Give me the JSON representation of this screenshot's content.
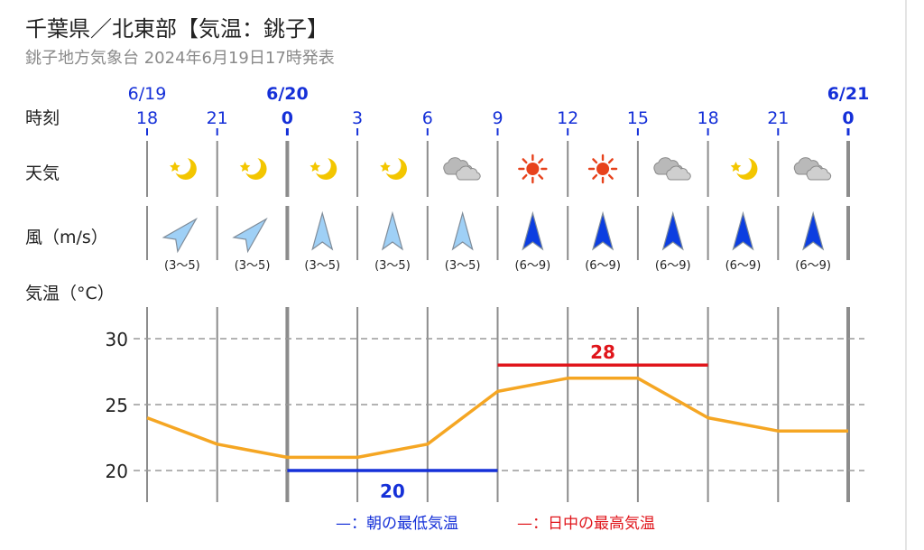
{
  "header": {
    "title": "千葉県／北東部【気温：銚子】",
    "subtitle": "銚子地方気象台 2024年6月19日17時発表"
  },
  "rows": {
    "time_label": "時刻",
    "weather_label": "天気",
    "wind_label": "風（m/s）",
    "temp_label": "気温（°C）"
  },
  "dates": [
    {
      "label": "6/19",
      "slot": 0,
      "bold": false
    },
    {
      "label": "6/20",
      "slot": 2,
      "bold": true
    },
    {
      "label": "6/21",
      "slot": 10,
      "bold": true
    }
  ],
  "hours": [
    "18",
    "21",
    "0",
    "3",
    "6",
    "9",
    "12",
    "15",
    "18",
    "21",
    "0"
  ],
  "weather": [
    "night-clear-icon",
    "night-clear-icon",
    "night-clear-icon",
    "night-clear-icon",
    "cloudy-icon",
    "sunny-icon",
    "sunny-icon",
    "cloudy-icon",
    "night-clear-icon",
    "cloudy-icon"
  ],
  "wind": [
    {
      "dir_deg": 225,
      "speed": "(3〜5)",
      "strong": false
    },
    {
      "dir_deg": 225,
      "speed": "(3〜5)",
      "strong": false
    },
    {
      "dir_deg": 180,
      "speed": "(3〜5)",
      "strong": false
    },
    {
      "dir_deg": 180,
      "speed": "(3〜5)",
      "strong": false
    },
    {
      "dir_deg": 180,
      "speed": "(3〜5)",
      "strong": false
    },
    {
      "dir_deg": 180,
      "speed": "(6〜9)",
      "strong": true
    },
    {
      "dir_deg": 180,
      "speed": "(6〜9)",
      "strong": true
    },
    {
      "dir_deg": 180,
      "speed": "(6〜9)",
      "strong": true
    },
    {
      "dir_deg": 180,
      "speed": "(6〜9)",
      "strong": true
    },
    {
      "dir_deg": 180,
      "speed": "(6〜9)",
      "strong": true
    }
  ],
  "colors": {
    "line": "#f5a623",
    "min": "#1530d8",
    "max": "#e0151b",
    "wind_weak": "#9fd0f6",
    "wind_strong": "#0c3ee0",
    "date_blue": "#1530d8",
    "grid": "#9a9a9a"
  },
  "chart_data": {
    "type": "line",
    "x": [
      "18",
      "21",
      "0",
      "3",
      "6",
      "9",
      "12",
      "15",
      "18",
      "21",
      "0"
    ],
    "ylabel": "気温（°C）",
    "ylim": [
      18,
      32
    ],
    "yticks": [
      20,
      25,
      30
    ],
    "series": [
      {
        "values": [
          24,
          22,
          21,
          21,
          22,
          26,
          27,
          27,
          24,
          23,
          23
        ]
      }
    ],
    "min_temp": {
      "value": 20,
      "label": "20",
      "from": "0",
      "to": "9"
    },
    "max_temp": {
      "value": 28,
      "label": "28",
      "from": "9",
      "to": "18"
    },
    "legend": [
      {
        "marker": "—",
        "text": "：朝の最低気温",
        "color": "#1530d8"
      },
      {
        "marker": "—",
        "text": "：日中の最高気温",
        "color": "#e0151b"
      }
    ]
  }
}
